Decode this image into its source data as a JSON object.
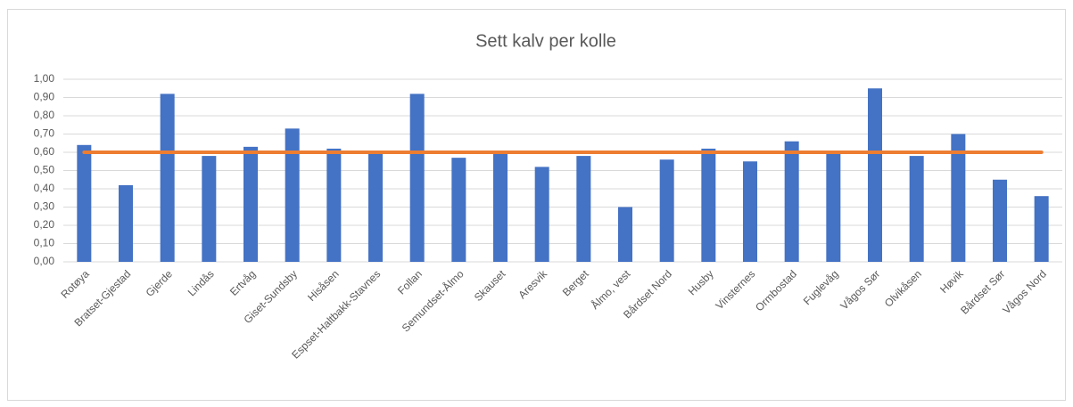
{
  "chart_data": {
    "type": "bar",
    "title": "Sett kalv per kolle",
    "categories": [
      "Rotøya",
      "Bratset-Gjestad",
      "Gjerde",
      "Lindås",
      "Ertvåg",
      "Giset-Sundsby",
      "Hisåsen",
      "Espset-Haltbakk-Stavnes",
      "Follan",
      "Semundset-Ålmo",
      "Skauset",
      "Aresvik",
      "Berget",
      "Ålmo, vest",
      "Bårdset Nord",
      "Husby",
      "Vinsternes",
      "Ormbostad",
      "Fuglevåg",
      "Vågos Sør",
      "Olvikåsen",
      "Høvik",
      "Bårdset Sør",
      "Vågos Nord"
    ],
    "series": [
      {
        "type": "bar",
        "color": "#4472c4",
        "values": [
          0.64,
          0.42,
          0.92,
          0.58,
          0.63,
          0.73,
          0.62,
          0.6,
          0.92,
          0.57,
          0.6,
          0.52,
          0.58,
          0.3,
          0.56,
          0.62,
          0.55,
          0.66,
          0.6,
          0.95,
          0.58,
          0.7,
          0.45,
          0.36
        ]
      },
      {
        "type": "line",
        "color": "#ed7d31",
        "values": [
          0.6,
          0.6,
          0.6,
          0.6,
          0.6,
          0.6,
          0.6,
          0.6,
          0.6,
          0.6,
          0.6,
          0.6,
          0.6,
          0.6,
          0.6,
          0.6,
          0.6,
          0.6,
          0.6,
          0.6,
          0.6,
          0.6,
          0.6,
          0.6
        ]
      }
    ],
    "ylim": [
      0,
      1
    ],
    "yticks": [
      {
        "value": 0,
        "label": "0,00"
      },
      {
        "value": 0.1,
        "label": "0,10"
      },
      {
        "value": 0.2,
        "label": "0,20"
      },
      {
        "value": 0.3,
        "label": "0,30"
      },
      {
        "value": 0.4,
        "label": "0,40"
      },
      {
        "value": 0.5,
        "label": "0,50"
      },
      {
        "value": 0.6,
        "label": "0,60"
      },
      {
        "value": 0.7,
        "label": "0,70"
      },
      {
        "value": 0.8,
        "label": "0,80"
      },
      {
        "value": 0.9,
        "label": "0,90"
      },
      {
        "value": 1,
        "label": "1,00"
      }
    ],
    "grid": true
  }
}
